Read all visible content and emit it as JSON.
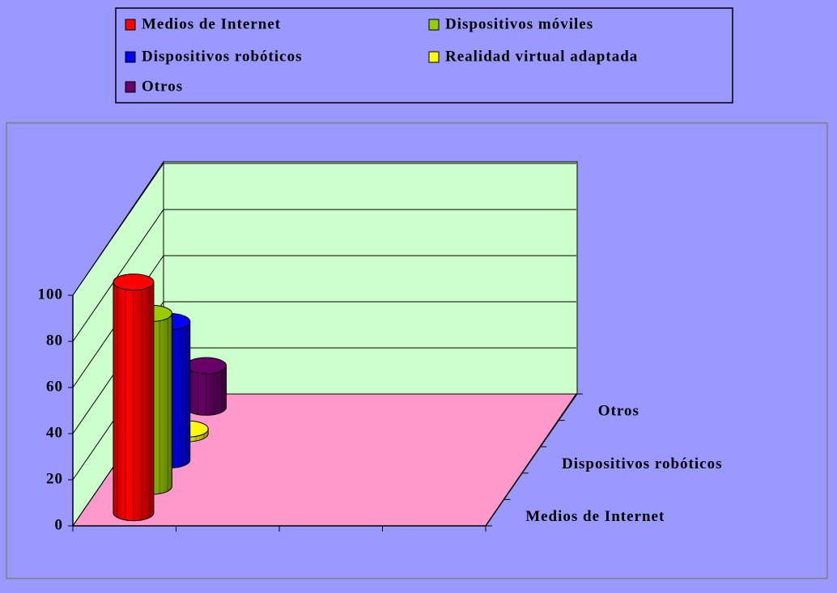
{
  "chart_data": {
    "type": "bar3d",
    "categories": [
      null,
      null,
      null,
      null
    ],
    "series": [
      {
        "name": "Medios de Internet",
        "color": "#ff0000",
        "values": [
          100,
          null,
          null,
          null
        ]
      },
      {
        "name": "Dispositivos móviles",
        "color": "#99cc00",
        "values": [
          75,
          null,
          null,
          null
        ]
      },
      {
        "name": "Dispositivos robóticos",
        "color": "#0000ff",
        "values": [
          60,
          null,
          null,
          null
        ]
      },
      {
        "name": "Realidad virtual adaptada",
        "color": "#ffff00",
        "values": [
          2,
          null,
          null,
          null
        ]
      },
      {
        "name": "Otros",
        "color": "#660066",
        "values": [
          18,
          null,
          null,
          null
        ]
      }
    ],
    "ylim": [
      0,
      100
    ],
    "yticks": [
      0,
      20,
      40,
      60,
      80,
      100
    ],
    "grid": true,
    "legend": "top"
  }
}
